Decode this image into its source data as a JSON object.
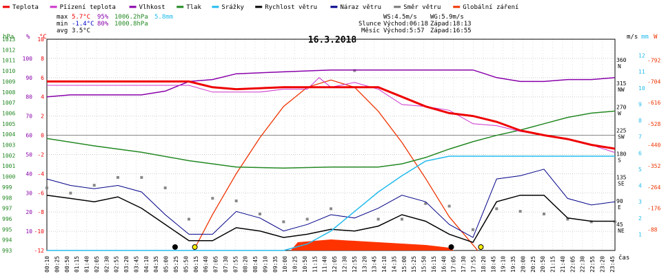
{
  "legend": [
    {
      "label": "Teplota",
      "color": "#ee0000"
    },
    {
      "label": "Pĭízení teplota",
      "color": "#cc33cc"
    },
    {
      "label": "Vlhkost",
      "color": "#8800aa"
    },
    {
      "label": "Tlak",
      "color": "#228822"
    },
    {
      "label": "Srážky",
      "color": "#22bbee"
    },
    {
      "label": "Rychlost větru",
      "color": "#000000"
    },
    {
      "label": "Náraz větru",
      "color": "#000088"
    },
    {
      "label": "Směr větru",
      "color": "#777777"
    },
    {
      "label": "Globální záření",
      "color": "#ee3300"
    }
  ],
  "stats": {
    "max_label": "max",
    "max_temp": "5.7°C",
    "max_hum": "95%",
    "max_press": "1006.2hPa",
    "max_rain": "5.8mm",
    "min_label": "min",
    "min_temp": "-1.4°C",
    "min_hum": "80%",
    "min_press": "1000.8hPa",
    "avg_label": "avg",
    "avg_temp": "3.5°C"
  },
  "wind_info": {
    "ws": "WS:4.5m/s",
    "wg": "WG:5.9m/s"
  },
  "sun_info": {
    "sun_label": "Slunce",
    "sun_rise": "Východ:06:18",
    "sun_set": "Západ:18:13"
  },
  "moon_info": {
    "moon_label": "Měsíc",
    "moon_rise": "Východ:5:57",
    "moon_set": "Západ:16:55"
  },
  "chart_data": {
    "type": "line",
    "title": "16.3.2018",
    "xlabel": "čas",
    "x_ticks": [
      "00:10",
      "00:25",
      "00:50",
      "01:15",
      "01:40",
      "02:05",
      "02:30",
      "02:55",
      "03:20",
      "03:45",
      "04:10",
      "04:35",
      "05:00",
      "05:25",
      "05:50",
      "06:15",
      "06:40",
      "07:05",
      "07:30",
      "07:55",
      "08:20",
      "08:45",
      "09:10",
      "09:35",
      "10:00",
      "10:25",
      "10:50",
      "11:15",
      "11:40",
      "12:05",
      "12:30",
      "12:55",
      "13:20",
      "13:45",
      "14:10",
      "14:35",
      "15:00",
      "15:25",
      "15:50",
      "16:15",
      "16:40",
      "17:05",
      "17:30",
      "17:55",
      "18:20",
      "18:45",
      "19:10",
      "19:35",
      "20:00",
      "20:25",
      "20:50",
      "21:15",
      "21:40",
      "22:05",
      "22:30",
      "22:55",
      "23:20",
      "23:45"
    ],
    "axes": {
      "pressure": {
        "unit": "hPa",
        "ticks": [
          "1013",
          "1012",
          "1011",
          "1010",
          "1009",
          "1008",
          "1007",
          "1006",
          "1005",
          "1004",
          "1003",
          "1002",
          "1001",
          "1000",
          "999",
          "998",
          "997",
          "996",
          "995",
          "994",
          "993"
        ]
      },
      "humidity": {
        "unit": "%",
        "ticks": [
          "100",
          "90",
          "80",
          "70",
          "60",
          "50",
          "40",
          "30",
          "20",
          "10"
        ]
      },
      "temperature": {
        "unit": "°C",
        "ticks": [
          "10",
          "8",
          "6",
          "4",
          "2",
          "0",
          "-2",
          "-4",
          "-6",
          "-8",
          "-10",
          "-12"
        ]
      },
      "wind_dir": {
        "unit": "m/s",
        "ticks": [
          "360",
          "315",
          "270",
          "225",
          "180",
          "135",
          "90",
          "45"
        ],
        "dirs": [
          "N",
          "NW",
          "W",
          "SW",
          "S",
          "SE",
          "E",
          "NE"
        ]
      },
      "rain": {
        "unit": "mm",
        "ticks": [
          "12",
          "11",
          "10",
          "9",
          "8",
          "7",
          "6",
          "5",
          "4",
          "3",
          "2",
          "1"
        ]
      },
      "radiation": {
        "unit": "W",
        "ticks": [
          "792",
          "704",
          "616",
          "528",
          "440",
          "352",
          "264",
          "176",
          "88"
        ]
      }
    },
    "series": [
      {
        "name": "Teplota",
        "unit": "°C",
        "x": [
          0,
          2,
          4,
          6,
          7,
          8,
          10,
          12,
          13,
          14,
          15,
          16,
          17,
          18,
          19,
          20,
          21,
          22,
          23,
          24
        ],
        "values": [
          5.6,
          5.6,
          5.6,
          5.6,
          5.0,
          4.8,
          5.0,
          5.0,
          5.0,
          5.0,
          4.0,
          3.0,
          2.3,
          2.0,
          1.4,
          0.5,
          0.0,
          -0.4,
          -1.0,
          -1.4
        ]
      },
      {
        "name": "Pĭízení teplota",
        "unit": "°C",
        "x": [
          0,
          2,
          4,
          6,
          7,
          8,
          9,
          10,
          11,
          11.5,
          12,
          13,
          14,
          15,
          16,
          17,
          18,
          19,
          20,
          21,
          22,
          23,
          24
        ],
        "values": [
          5.2,
          5.2,
          5.2,
          5.2,
          4.5,
          4.5,
          4.5,
          4.8,
          4.8,
          6.0,
          5.0,
          5.5,
          4.8,
          3.2,
          3.0,
          2.6,
          1.2,
          1.0,
          0.4,
          0.0,
          -0.4,
          -1.0,
          -1.8
        ]
      },
      {
        "name": "Vlhkost",
        "unit": "%",
        "x": [
          0,
          1,
          2,
          4,
          5,
          6,
          7,
          8,
          10,
          12,
          14,
          16,
          17,
          18,
          18.5,
          19,
          20,
          21,
          22,
          23,
          24
        ],
        "values": [
          80,
          81,
          81,
          81,
          83,
          88,
          89,
          92,
          93,
          94,
          94,
          94,
          94,
          94,
          92,
          90,
          88,
          88,
          89,
          89,
          90
        ]
      },
      {
        "name": "Tlak",
        "unit": "hPa",
        "x": [
          0,
          2,
          4,
          6,
          8,
          10,
          12,
          14,
          15,
          16,
          17,
          18,
          19,
          20,
          21,
          22,
          23,
          24
        ],
        "values": [
          1003.6,
          1002.9,
          1002.3,
          1001.5,
          1000.9,
          1000.8,
          1000.9,
          1000.9,
          1001.2,
          1001.8,
          1002.6,
          1003.3,
          1003.9,
          1004.4,
          1005.0,
          1005.6,
          1006.0,
          1006.2
        ]
      },
      {
        "name": "Srážky",
        "unit": "mm",
        "x": [
          0,
          10,
          11,
          12,
          13,
          14,
          15,
          16,
          17,
          18,
          24
        ],
        "values": [
          0,
          0,
          0.4,
          1.2,
          2.4,
          3.6,
          4.6,
          5.5,
          5.8,
          5.8,
          5.8
        ]
      },
      {
        "name": "Rychlost větru",
        "unit": "m/s",
        "x": [
          0,
          1,
          2,
          3,
          4,
          5,
          6,
          7,
          8,
          9,
          10,
          11,
          12,
          13,
          14,
          15,
          16,
          17,
          18,
          19,
          20,
          21,
          22,
          23,
          24
        ],
        "values": [
          3.4,
          3.2,
          3.0,
          3.3,
          2.6,
          1.6,
          0.6,
          0.6,
          1.4,
          1.2,
          0.8,
          1.0,
          1.3,
          1.2,
          1.5,
          2.2,
          1.8,
          1.0,
          0.5,
          3.0,
          3.4,
          3.4,
          2.0,
          1.8,
          1.8
        ]
      },
      {
        "name": "Náraz větru",
        "unit": "m/s",
        "x": [
          0,
          1,
          2,
          3,
          4,
          5,
          6,
          7,
          8,
          9,
          10,
          11,
          12,
          13,
          14,
          15,
          16,
          17,
          18,
          19,
          20,
          21,
          22,
          23,
          24
        ],
        "values": [
          4.4,
          4.0,
          3.8,
          4.0,
          3.6,
          2.2,
          1.0,
          1.0,
          2.4,
          2.0,
          1.2,
          1.6,
          2.2,
          2.0,
          2.6,
          3.4,
          3.0,
          1.6,
          0.8,
          4.4,
          4.6,
          5.0,
          3.2,
          2.8,
          3.0
        ]
      },
      {
        "name": "Směr větru",
        "unit": "°",
        "x": [
          0,
          1,
          2,
          3,
          4,
          5,
          6,
          7,
          8,
          9,
          10,
          11,
          12,
          13,
          14,
          15,
          16,
          17,
          18,
          19,
          20,
          21,
          22,
          23,
          24
        ],
        "values": [
          120,
          110,
          125,
          140,
          140,
          120,
          60,
          100,
          95,
          70,
          55,
          60,
          80,
          345,
          60,
          60,
          90,
          85,
          40,
          80,
          75,
          70,
          60,
          55,
          55
        ]
      },
      {
        "name": "Globální záření",
        "unit": "W",
        "x": [
          6.2,
          7,
          8,
          9,
          10,
          11,
          12,
          13,
          14,
          15,
          16,
          17,
          18.2
        ],
        "values": [
          0,
          150,
          320,
          470,
          600,
          680,
          710,
          680,
          580,
          450,
          300,
          140,
          0
        ]
      }
    ],
    "sun_markers": [
      {
        "time": "05:25",
        "color": "#000000"
      },
      {
        "time": "06:15",
        "color": "#ffee00"
      },
      {
        "time": "17:05",
        "color": "#000000"
      },
      {
        "time": "18:20",
        "color": "#ffee00"
      }
    ],
    "grid": true
  }
}
